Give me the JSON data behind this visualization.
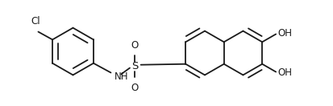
{
  "bg_color": "#ffffff",
  "line_color": "#1a1a1a",
  "line_width": 1.3,
  "font_size": 8.5,
  "figsize": [
    4.14,
    1.32
  ],
  "dpi": 100,
  "xlim": [
    0,
    414
  ],
  "ylim": [
    0,
    132
  ]
}
